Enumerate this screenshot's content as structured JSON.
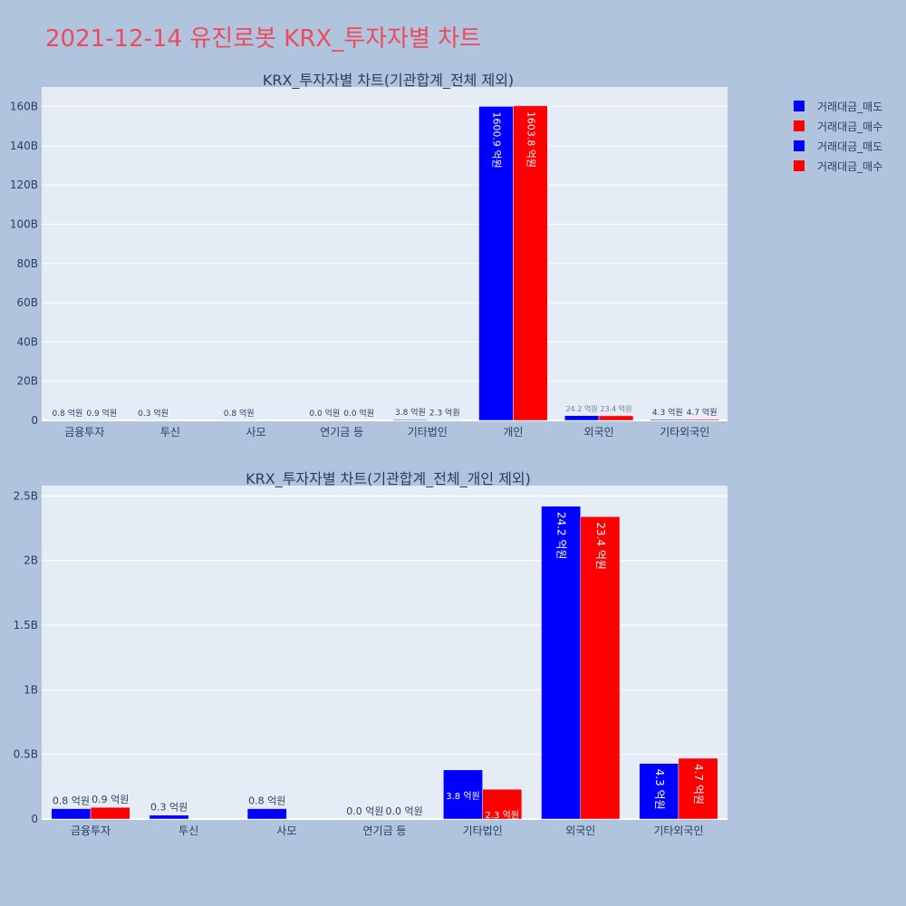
{
  "title": "2021-12-14 유진로봇 KRX_투자자별 차트",
  "colors": {
    "sell": "#0000ff",
    "buy": "#ff0000",
    "plot_bg": "#e5ecf6",
    "page_bg": "#b0c4de",
    "title": "#ef4a5c"
  },
  "legend": [
    {
      "name": "거래대금_매도",
      "color": "#0000ff"
    },
    {
      "name": "거래대금_매수",
      "color": "#ff0000"
    },
    {
      "name": "거래대금_매도",
      "color": "#0000ff"
    },
    {
      "name": "거래대금_매수",
      "color": "#ff0000"
    }
  ],
  "chart_data": [
    {
      "type": "bar",
      "title": "KRX_투자자별 차트(기관합계_전체 제외)",
      "categories": [
        "금융투자",
        "투신",
        "사모",
        "연기금 등",
        "기타법인",
        "개인",
        "외국인",
        "기타외국인"
      ],
      "ylim": [
        0,
        170
      ],
      "yticks": [
        0,
        20,
        40,
        60,
        80,
        100,
        120,
        140,
        160
      ],
      "ytick_labels": [
        "0",
        "20B",
        "40B",
        "60B",
        "80B",
        "100B",
        "120B",
        "140B",
        "160B"
      ],
      "grid": true,
      "series": [
        {
          "name": "거래대금_매도",
          "values": [
            0.08,
            0.03,
            0.08,
            0.0,
            0.38,
            160.09,
            2.42,
            0.43
          ],
          "labels": [
            "0.8 억원",
            "0.3 억원",
            "0.8 억원",
            "0.0 억원",
            "3.8 억원",
            "1600.9 억원",
            "24.2 억원",
            "4.3 억원"
          ]
        },
        {
          "name": "거래대금_매수",
          "values": [
            0.09,
            null,
            null,
            0.0,
            0.23,
            160.38,
            2.34,
            0.47
          ],
          "labels": [
            "0.9 억원",
            "",
            "",
            "0.0 억원",
            "2.3 억원",
            "1603.8 억원",
            "23.4 억원",
            "4.7 억원"
          ]
        }
      ]
    },
    {
      "type": "bar",
      "title": "KRX_투자자별 차트(기관합계_전체_개인 제외)",
      "categories": [
        "금융투자",
        "투신",
        "사모",
        "연기금 등",
        "기타법인",
        "외국인",
        "기타외국인"
      ],
      "ylim": [
        0,
        2.58
      ],
      "yticks": [
        0,
        0.5,
        1,
        1.5,
        2,
        2.5
      ],
      "ytick_labels": [
        "0",
        "0.5B",
        "1B",
        "1.5B",
        "2B",
        "2.5B"
      ],
      "grid": true,
      "series": [
        {
          "name": "거래대금_매도",
          "values": [
            0.08,
            0.03,
            0.08,
            0.0,
            0.38,
            2.42,
            0.43
          ],
          "labels": [
            "0.8 억원",
            "0.3 억원",
            "0.8 억원",
            "0.0 억원",
            "3.8 억원",
            "24.2 억원",
            "4.3 억원"
          ]
        },
        {
          "name": "거래대금_매수",
          "values": [
            0.09,
            null,
            null,
            0.0,
            0.23,
            2.34,
            0.47
          ],
          "labels": [
            "0.9 억원",
            "",
            "",
            "0.0 억원",
            "2.3 억원",
            "23.4 억원",
            "4.7 억원"
          ]
        }
      ]
    }
  ]
}
